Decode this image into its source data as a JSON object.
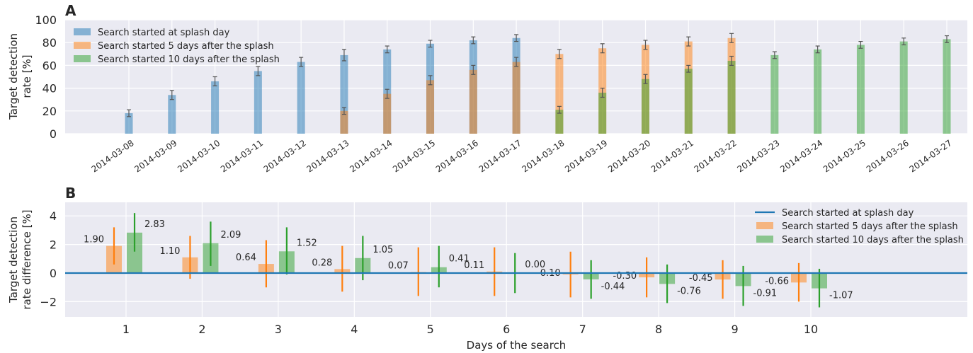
{
  "colors": {
    "blue": "#1f77b4",
    "orange": "#ff7f0e",
    "green": "#2ca02c",
    "plot_bg": "#eaeaf2",
    "grid": "#ffffff",
    "errorbar_top": "#555555"
  },
  "chart_data": [
    {
      "panel": "A",
      "type": "bar",
      "ylabel": "Target detection\nrate [%]",
      "ylim": [
        0,
        100
      ],
      "yticks": [
        0,
        20,
        40,
        60,
        80,
        100
      ],
      "grid": true,
      "legend_position": "top-left",
      "categories": [
        "2014-03-08",
        "2014-03-09",
        "2014-03-10",
        "2014-03-11",
        "2014-03-12",
        "2014-03-13",
        "2014-03-14",
        "2014-03-15",
        "2014-03-16",
        "2014-03-17",
        "2014-03-18",
        "2014-03-19",
        "2014-03-20",
        "2014-03-21",
        "2014-03-22",
        "2014-03-23",
        "2014-03-24",
        "2014-03-25",
        "2014-03-26",
        "2014-03-27"
      ],
      "series": [
        {
          "name": "Search started at splash day",
          "color": "blue",
          "values": [
            18,
            34,
            46,
            55,
            63,
            69,
            74,
            79,
            82,
            84,
            null,
            null,
            null,
            null,
            null,
            null,
            null,
            null,
            null,
            null
          ],
          "errors": [
            3,
            4,
            4,
            4,
            4,
            5,
            3,
            3,
            3,
            3,
            null,
            null,
            null,
            null,
            null,
            null,
            null,
            null,
            null,
            null
          ]
        },
        {
          "name": "Search started 5 days after the splash",
          "color": "orange",
          "values": [
            null,
            null,
            null,
            null,
            null,
            20,
            35,
            47,
            56,
            63,
            70,
            75,
            78,
            81,
            84,
            null,
            null,
            null,
            null,
            null
          ],
          "errors": [
            null,
            null,
            null,
            null,
            null,
            3,
            4,
            4,
            4,
            4,
            4,
            4,
            4,
            4,
            4,
            null,
            null,
            null,
            null,
            null
          ]
        },
        {
          "name": "Search started 10 days after the splash",
          "color": "green",
          "values": [
            null,
            null,
            null,
            null,
            null,
            null,
            null,
            null,
            null,
            null,
            21,
            36,
            48,
            57,
            64,
            69,
            74,
            78,
            81,
            83
          ],
          "errors": [
            null,
            null,
            null,
            null,
            null,
            null,
            null,
            null,
            null,
            null,
            3,
            4,
            4,
            3,
            4,
            3,
            3,
            3,
            3,
            3
          ]
        }
      ]
    },
    {
      "panel": "B",
      "type": "bar",
      "xlabel": "Days of the search",
      "ylabel": "Target detection\nrate difference [%]",
      "ylim": [
        -3,
        5
      ],
      "yticks": [
        -2,
        0,
        2,
        4
      ],
      "xticks": [
        1,
        2,
        3,
        4,
        5,
        6,
        7,
        8,
        9,
        10
      ],
      "grid": true,
      "legend_position": "top-right",
      "series": [
        {
          "name": "Search started at splash day",
          "color": "blue",
          "kind": "line",
          "value": 0
        },
        {
          "name": "Search started 5 days after the splash",
          "color": "orange",
          "x": [
            1,
            2,
            3,
            4,
            5,
            6,
            7,
            8,
            9,
            10
          ],
          "values": [
            1.9,
            1.1,
            0.64,
            0.28,
            0.07,
            0.11,
            -0.1,
            -0.3,
            -0.45,
            -0.66
          ],
          "labels": [
            "1.90",
            "1.10",
            "0.64",
            "0.28",
            "0.07",
            "0.11",
            "-0.10",
            "-0.30",
            "-0.45",
            "-0.66"
          ],
          "err_low": [
            0.6,
            -0.4,
            -1.0,
            -1.3,
            -1.6,
            -1.6,
            -1.7,
            -1.7,
            -1.8,
            -2.0
          ],
          "err_high": [
            3.2,
            2.6,
            2.3,
            1.9,
            1.8,
            1.8,
            1.5,
            1.1,
            0.9,
            0.7
          ]
        },
        {
          "name": "Search started 10 days after the splash",
          "color": "green",
          "x": [
            1,
            2,
            3,
            4,
            5,
            6,
            7,
            8,
            9,
            10
          ],
          "values": [
            2.83,
            2.09,
            1.52,
            1.05,
            0.41,
            0.0,
            -0.44,
            -0.76,
            -0.91,
            -1.07
          ],
          "labels": [
            "2.83",
            "2.09",
            "1.52",
            "1.05",
            "0.41",
            "0.00",
            "-0.44",
            "-0.76",
            "-0.91",
            "-1.07"
          ],
          "err_low": [
            1.5,
            0.5,
            -0.1,
            -0.5,
            -1.0,
            -1.4,
            -1.8,
            -2.1,
            -2.3,
            -2.4
          ],
          "err_high": [
            4.2,
            3.6,
            3.2,
            2.6,
            1.9,
            1.4,
            0.9,
            0.6,
            0.5,
            0.3
          ]
        }
      ]
    }
  ]
}
